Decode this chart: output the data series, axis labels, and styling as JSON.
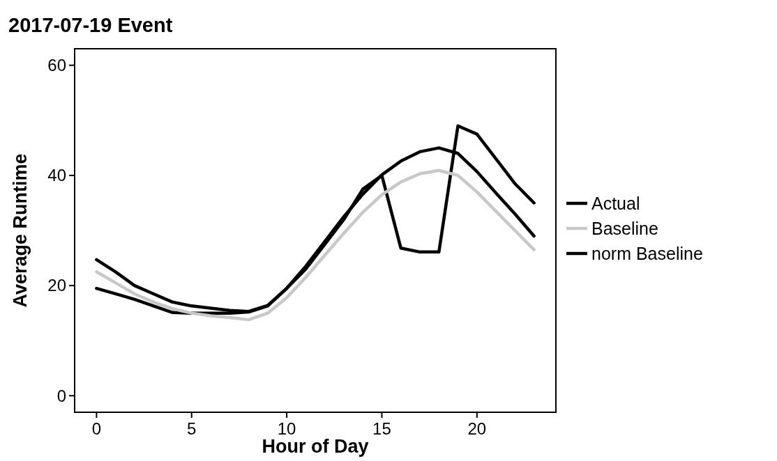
{
  "chart_data": {
    "type": "line",
    "title": "2017-07-19 Event",
    "xlabel": "Hour of Day",
    "ylabel": "Average Runtime",
    "x": [
      0,
      1,
      2,
      3,
      4,
      5,
      6,
      7,
      8,
      9,
      10,
      11,
      12,
      13,
      14,
      15,
      16,
      17,
      18,
      19,
      20,
      21,
      22,
      23
    ],
    "xlim": [
      -1.15,
      24.15
    ],
    "xticks": [
      0,
      5,
      10,
      15,
      20
    ],
    "ylim": [
      -3,
      63
    ],
    "yticks": [
      0,
      20,
      40,
      60
    ],
    "grid": false,
    "legend": "right",
    "line_style": "solid",
    "marker": "none",
    "series": [
      {
        "name": "Actual",
        "color": "#000000",
        "values": [
          19.5,
          18.5,
          17.5,
          16.3,
          15.1,
          15,
          15,
          15,
          15.2,
          16.3,
          19.5,
          23,
          27.5,
          32,
          37.5,
          40,
          26.8,
          26.1,
          26.1,
          49,
          47.5,
          43,
          38.5,
          35
        ]
      },
      {
        "name": "Baseline",
        "color": "#c8c8c8",
        "values": [
          22.5,
          20.5,
          18.5,
          17,
          15.8,
          15,
          14.5,
          14.2,
          13.8,
          15,
          17.8,
          21.5,
          25.5,
          29.5,
          33.3,
          36.5,
          38.8,
          40.3,
          40.9,
          40,
          37,
          33.5,
          30,
          26.5
        ]
      },
      {
        "name": "norm Baseline",
        "color": "#000000",
        "values": [
          24.7,
          22.5,
          20,
          18.5,
          17,
          16.3,
          15.9,
          15.5,
          15.3,
          16.4,
          19.5,
          23.5,
          28,
          32.5,
          36.6,
          40.1,
          42.6,
          44.3,
          45,
          44,
          40.7,
          36.8,
          33,
          29
        ]
      }
    ]
  }
}
